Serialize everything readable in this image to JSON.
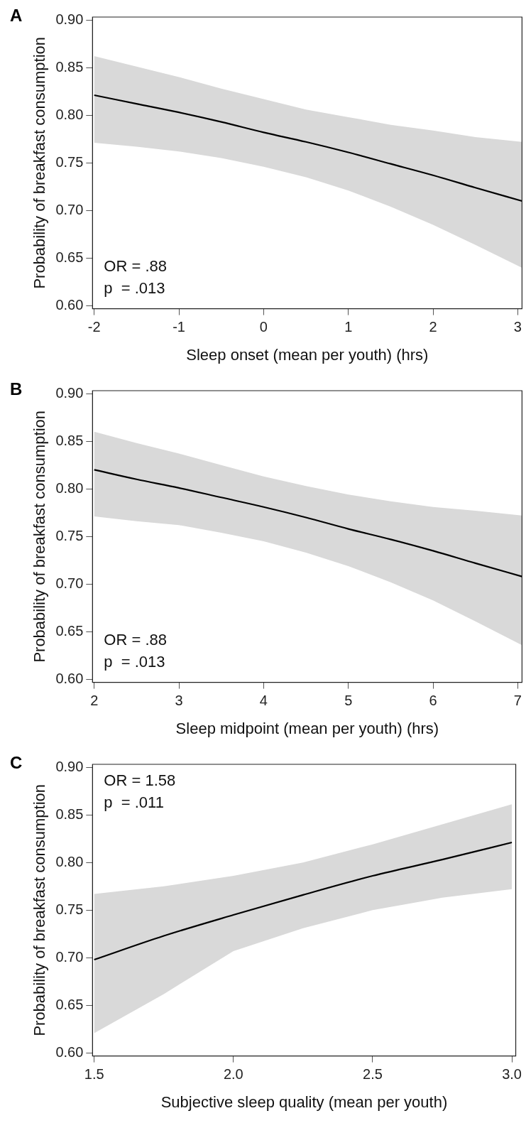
{
  "chart_data": [
    {
      "type": "line",
      "title": "A",
      "xlabel": "Sleep onset (mean per youth) (hrs)",
      "ylabel": "Probability of breakfast consumption",
      "x": [
        -2,
        -1.5,
        -1,
        -0.5,
        0,
        0.5,
        1,
        1.5,
        2,
        2.5,
        3.05
      ],
      "series": [
        {
          "color": "#000000",
          "values": [
            0.821,
            0.812,
            0.803,
            0.793,
            0.782,
            0.772,
            0.761,
            0.749,
            0.737,
            0.724,
            0.71
          ],
          "lower": [
            0.771,
            0.767,
            0.762,
            0.755,
            0.746,
            0.735,
            0.721,
            0.704,
            0.685,
            0.664,
            0.64
          ],
          "upper": [
            0.862,
            0.851,
            0.84,
            0.828,
            0.817,
            0.806,
            0.798,
            0.79,
            0.784,
            0.777,
            0.772
          ]
        }
      ],
      "xlim": [
        -2.02,
        3.05
      ],
      "ylim": [
        0.597,
        0.903
      ],
      "xticks": [
        -2,
        -1,
        0,
        1,
        2,
        3
      ],
      "yticks": [
        {
          "value": 0.6,
          "label": "0.60"
        },
        {
          "value": 0.65,
          "label": "0.65"
        },
        {
          "value": 0.7,
          "label": "0.70"
        },
        {
          "value": 0.75,
          "label": "0.75"
        },
        {
          "value": 0.8,
          "label": "0.80"
        },
        {
          "value": 0.85,
          "label": "0.85"
        },
        {
          "value": 0.9,
          "label": "0.90"
        }
      ],
      "annotations": [
        "OR = .88",
        "p  = .013"
      ],
      "grid": false,
      "legend": false
    },
    {
      "type": "line",
      "title": "B",
      "xlabel": "Sleep midpoint (mean per youth) (hrs)",
      "ylabel": "Probability of breakfast consumption",
      "x": [
        2,
        2.5,
        3,
        3.5,
        4,
        4.5,
        5,
        5.5,
        6,
        6.5,
        7.05
      ],
      "series": [
        {
          "color": "#000000",
          "values": [
            0.82,
            0.81,
            0.801,
            0.791,
            0.781,
            0.77,
            0.758,
            0.747,
            0.735,
            0.722,
            0.708
          ],
          "lower": [
            0.771,
            0.766,
            0.762,
            0.754,
            0.745,
            0.733,
            0.719,
            0.702,
            0.683,
            0.661,
            0.636
          ],
          "upper": [
            0.86,
            0.848,
            0.837,
            0.825,
            0.813,
            0.803,
            0.794,
            0.787,
            0.781,
            0.777,
            0.772
          ]
        }
      ],
      "xlim": [
        1.98,
        7.05
      ],
      "ylim": [
        0.597,
        0.903
      ],
      "xticks": [
        2,
        3,
        4,
        5,
        6,
        7
      ],
      "yticks": [
        {
          "value": 0.6,
          "label": "0.60"
        },
        {
          "value": 0.65,
          "label": "0.65"
        },
        {
          "value": 0.7,
          "label": "0.70"
        },
        {
          "value": 0.75,
          "label": "0.75"
        },
        {
          "value": 0.8,
          "label": "0.80"
        },
        {
          "value": 0.85,
          "label": "0.85"
        },
        {
          "value": 0.9,
          "label": "0.90"
        }
      ],
      "annotations": [
        "OR = .88",
        "p  = .013"
      ],
      "grid": false,
      "legend": false
    },
    {
      "type": "line",
      "title": "C",
      "xlabel": "Subjective sleep quality (mean per youth)",
      "ylabel": "Probability of breakfast consumption",
      "x": [
        1.5,
        1.75,
        2,
        2.25,
        2.5,
        2.75,
        3
      ],
      "series": [
        {
          "color": "#000000",
          "values": [
            0.698,
            0.723,
            0.745,
            0.766,
            0.786,
            0.803,
            0.821
          ],
          "lower": [
            0.621,
            0.662,
            0.707,
            0.731,
            0.75,
            0.763,
            0.772
          ],
          "upper": [
            0.767,
            0.775,
            0.786,
            0.8,
            0.819,
            0.84,
            0.861
          ]
        }
      ],
      "xlim": [
        1.494,
        3.014
      ],
      "ylim": [
        0.597,
        0.903
      ],
      "xticks": [
        {
          "value": 1.5,
          "label": "1.5"
        },
        {
          "value": 2,
          "label": "2.0"
        },
        {
          "value": 2.5,
          "label": "2.5"
        },
        {
          "value": 3,
          "label": "3.0"
        }
      ],
      "yticks": [
        {
          "value": 0.6,
          "label": "0.60"
        },
        {
          "value": 0.65,
          "label": "0.65"
        },
        {
          "value": 0.7,
          "label": "0.70"
        },
        {
          "value": 0.75,
          "label": "0.75"
        },
        {
          "value": 0.8,
          "label": "0.80"
        },
        {
          "value": 0.85,
          "label": "0.85"
        },
        {
          "value": 0.9,
          "label": "0.90"
        }
      ],
      "annotations": [
        "OR = 1.58",
        "p  = .011"
      ],
      "grid": false,
      "legend": false
    }
  ]
}
